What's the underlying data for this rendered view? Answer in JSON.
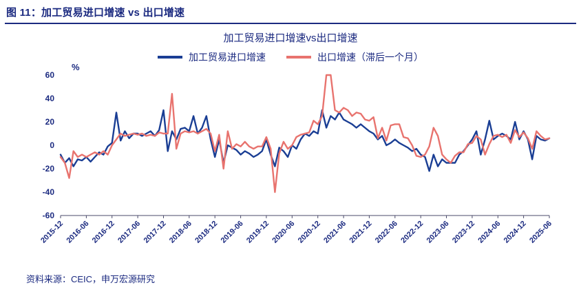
{
  "page": {
    "header_title": "图 11：加工贸易进口增速 vs 出口增速",
    "source_note": "资料来源：CEIC，申万宏源研究"
  },
  "colors": {
    "navy": "#1A3E94",
    "salmon": "#E8736E",
    "text_navy": "#1B2A80"
  },
  "chart_data": {
    "type": "line",
    "title": "加工贸易进口增速vs出口增速",
    "ylabel": "%",
    "ylim": [
      -60,
      60
    ],
    "yticks": [
      60,
      40,
      20,
      0,
      -20,
      -40,
      -60
    ],
    "grid": false,
    "legend_position": "top",
    "frequency": "monthly",
    "x_start": "2015-12",
    "x_end": "2025-06",
    "x_ticks": [
      "2015-12",
      "2016-06",
      "2016-12",
      "2017-06",
      "2017-12",
      "2018-06",
      "2018-12",
      "2019-06",
      "2019-12",
      "2020-06",
      "2020-12",
      "2021-06",
      "2021-12",
      "2022-06",
      "2022-12",
      "2023-06",
      "2023-12",
      "2024-06",
      "2024-12",
      "2025-06"
    ],
    "x_tick_indices": [
      0,
      6,
      12,
      18,
      24,
      30,
      36,
      42,
      48,
      54,
      60,
      66,
      72,
      78,
      84,
      90,
      96,
      102,
      108,
      114
    ],
    "series": [
      {
        "name": "加工贸易进口增速",
        "color": "#1A3E94",
        "values": [
          -8,
          -15,
          -11,
          -18,
          -12,
          -13,
          -10,
          -14,
          -10,
          -6,
          -8,
          -1,
          2,
          28,
          4,
          12,
          6,
          10,
          10,
          8,
          10,
          12,
          8,
          13,
          30,
          -5,
          12,
          5,
          14,
          15,
          12,
          25,
          10,
          15,
          25,
          5,
          -10,
          5,
          -15,
          0,
          -2,
          -4,
          -8,
          -5,
          -7,
          -10,
          -8,
          -5,
          5,
          -8,
          -18,
          -2,
          -5,
          -10,
          0,
          -3,
          5,
          10,
          8,
          12,
          10,
          30,
          15,
          25,
          22,
          28,
          22,
          20,
          18,
          15,
          18,
          15,
          12,
          10,
          5,
          8,
          0,
          2,
          5,
          2,
          0,
          -2,
          -5,
          -3,
          -8,
          -10,
          -22,
          -8,
          -18,
          -12,
          -15,
          -15,
          -15,
          -8,
          -5,
          0,
          5,
          12,
          -8,
          5,
          21,
          5,
          8,
          10,
          8,
          5,
          20,
          5,
          12,
          5,
          -12,
          8,
          5,
          4,
          6
        ]
      },
      {
        "name": "出口增速（滞后一个月）",
        "color": "#E8736E",
        "values": [
          -10,
          -15,
          -28,
          -5,
          -10,
          -8,
          -10,
          -8,
          -6,
          -8,
          -5,
          -8,
          0,
          5,
          10,
          8,
          9,
          10,
          9,
          10,
          8,
          9,
          8,
          11,
          10,
          10,
          44,
          -3,
          10,
          12,
          11,
          12,
          10,
          12,
          14,
          10,
          -5,
          9,
          -20,
          12,
          -3,
          1,
          -1,
          3,
          -1,
          -3,
          -1,
          -1,
          7,
          -3,
          -40,
          -7,
          3,
          -3,
          0,
          7,
          9,
          10,
          11,
          21,
          18,
          25,
          60,
          60,
          30,
          28,
          32,
          30,
          25,
          28,
          27,
          22,
          21,
          24,
          6,
          15,
          4,
          17,
          18,
          18,
          7,
          6,
          0,
          -9,
          -10,
          -8,
          -1,
          15,
          8,
          -8,
          -12,
          -15,
          -9,
          -6,
          -6,
          1,
          2,
          8,
          5,
          -8,
          1,
          8,
          9,
          7,
          9,
          2,
          13,
          7,
          11,
          6,
          -3,
          12,
          8,
          5,
          6
        ]
      }
    ]
  }
}
